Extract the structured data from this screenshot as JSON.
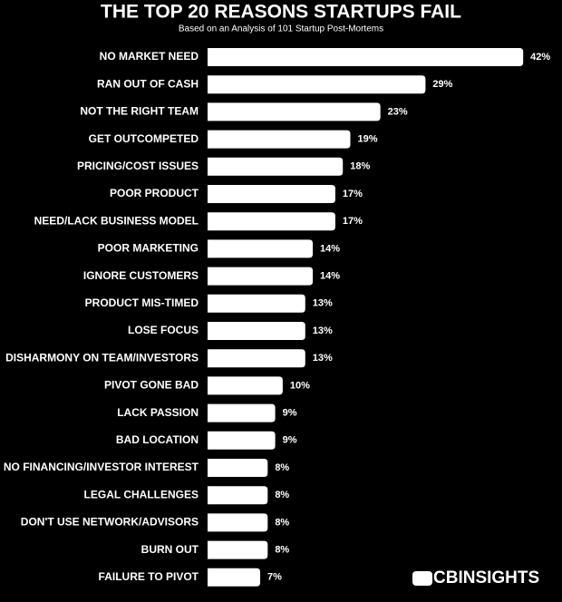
{
  "chart_data": {
    "type": "hbar",
    "title": "THE TOP 20 REASONS STARTUPS FAIL",
    "subtitle": "Based on an Analysis of 101 Startup Post-Mortems",
    "brand": "CBINSIGHTS",
    "color": "#ffffff",
    "categories": [
      "NO MARKET NEED",
      "RAN OUT OF CASH",
      "NOT THE RIGHT TEAM",
      "GET OUTCOMPETED",
      "PRICING/COST ISSUES",
      "POOR PRODUCT",
      "NEED/LACK BUSINESS MODEL",
      "POOR MARKETING",
      "IGNORE CUSTOMERS",
      "PRODUCT MIS-TIMED",
      "LOSE FOCUS",
      "DISHARMONY ON TEAM/INVESTORS",
      "PIVOT GONE BAD",
      "LACK PASSION",
      "BAD LOCATION",
      "NO FINANCING/INVESTOR INTEREST",
      "LEGAL CHALLENGES",
      "DON'T USE NETWORK/ADVISORS",
      "BURN OUT",
      "FAILURE TO PIVOT"
    ],
    "values": [
      42,
      29,
      23,
      19,
      18,
      17,
      17,
      14,
      14,
      13,
      13,
      13,
      10,
      9,
      9,
      8,
      8,
      8,
      8,
      7
    ],
    "value_labels": [
      "42%",
      "29%",
      "23%",
      "19%",
      "18%",
      "17%",
      "17%",
      "14%",
      "14%",
      "13%",
      "13%",
      "13%",
      "10%",
      "9%",
      "9%",
      "8%",
      "8%",
      "8%",
      "8%",
      "7%"
    ]
  }
}
